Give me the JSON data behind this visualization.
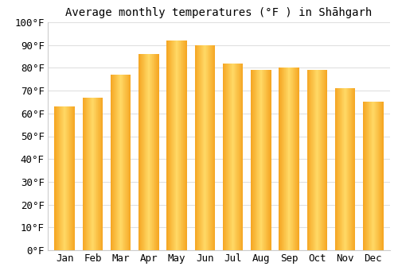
{
  "months": [
    "Jan",
    "Feb",
    "Mar",
    "Apr",
    "May",
    "Jun",
    "Jul",
    "Aug",
    "Sep",
    "Oct",
    "Nov",
    "Dec"
  ],
  "values": [
    63,
    67,
    77,
    86,
    92,
    90,
    82,
    79,
    80,
    79,
    71,
    65
  ],
  "title": "Average monthly temperatures (°F ) in Shāhgarh",
  "ylim": [
    0,
    100
  ],
  "background_color": "#ffffff",
  "grid_color": "#e0e0e0",
  "title_fontsize": 10,
  "tick_fontsize": 9,
  "bar_color_center": "#FFD966",
  "bar_color_edge": "#F5A623",
  "spine_color": "#cccccc"
}
